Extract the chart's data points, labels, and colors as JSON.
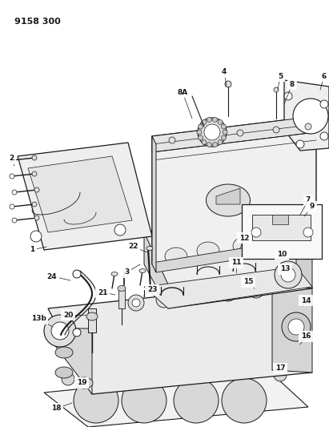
{
  "title": "9158 300",
  "bg_color": "#ffffff",
  "line_color": "#1a1a1a",
  "fill_light": "#f0f0f0",
  "fill_mid": "#e0e0e0",
  "fill_dark": "#c8c8c8",
  "title_fontsize": 8,
  "label_fontsize": 6.5,
  "figsize": [
    4.11,
    5.33
  ],
  "dpi": 100
}
